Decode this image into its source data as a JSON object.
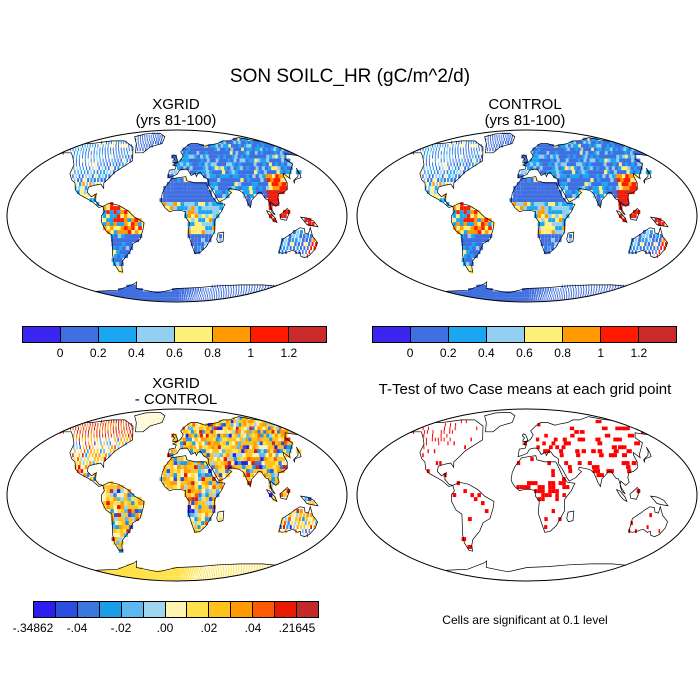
{
  "figure": {
    "main_title": "SON SOILC_HR (gC/m^2/d)"
  },
  "panels": {
    "xgrid": {
      "title_line1": "XGRID",
      "title_line2": "(yrs 81-100)"
    },
    "control": {
      "title_line1": "CONTROL",
      "title_line2": "(yrs 81-100)"
    },
    "diff": {
      "title_line1": "XGRID",
      "title_line2": "- CONTROL"
    },
    "ttest": {
      "title": "T-Test of two Case means at each grid point",
      "note": "Cells are significant at 0.1 level",
      "significant_color": "#ff0000"
    }
  },
  "colorbars": {
    "abs": {
      "colors": [
        "#3a26f0",
        "#3f6fe0",
        "#1aa6f0",
        "#92cff0",
        "#fff07a",
        "#ff9a00",
        "#ff1a00",
        "#cc2a2a"
      ],
      "labels": [
        "0",
        "0.2",
        "0.4",
        "0.6",
        "0.8",
        "1",
        "1.2"
      ]
    },
    "diff": {
      "colors": [
        "#2a1ef0",
        "#2a4fe0",
        "#3a78e0",
        "#1a9ee8",
        "#5cb8ee",
        "#9ed6f0",
        "#fff3b0",
        "#ffe24a",
        "#ffc21a",
        "#ff9a00",
        "#ff5a00",
        "#e81a00",
        "#c42a2a"
      ],
      "labels": [
        "-.34862",
        "-.04",
        "-.02",
        ".00",
        ".02",
        ".04",
        ".21645"
      ]
    }
  }
}
